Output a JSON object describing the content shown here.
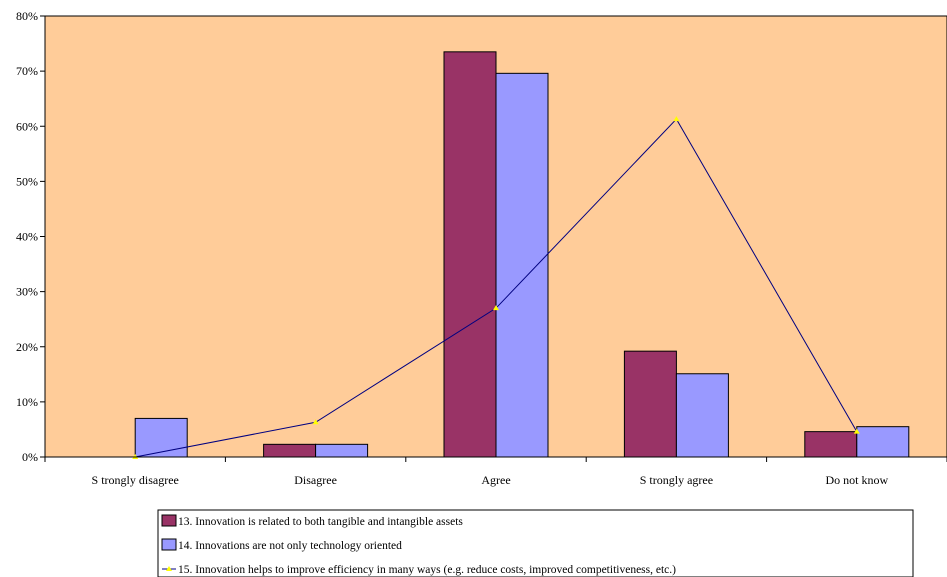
{
  "chart_data": {
    "type": "bar",
    "categories": [
      "S trongly disagree",
      "Disagree",
      "Agree",
      "S trongly agree",
      "Do not know"
    ],
    "ylim": [
      0,
      80
    ],
    "yticks": [
      0,
      10,
      20,
      30,
      40,
      50,
      60,
      70,
      80
    ],
    "ytick_labels": [
      "0%",
      "10%",
      "20%",
      "30%",
      "40%",
      "50%",
      "60%",
      "70%",
      "80%"
    ],
    "grid": false,
    "legend_position": "bottom",
    "series": [
      {
        "name": "13. Innovation is related to both tangible and intangible assets",
        "kind": "bar",
        "color": "#993366",
        "values": [
          0,
          2.3,
          73.5,
          19.2,
          4.6
        ]
      },
      {
        "name": "14. Innovations are not only technology oriented",
        "kind": "bar",
        "color": "#9999ff",
        "values": [
          7.0,
          2.3,
          69.6,
          15.1,
          5.5
        ]
      },
      {
        "name": "15. Innovation helps to improve efficiency in many ways (e.g. reduce costs, improved competitiveness, etc.)",
        "kind": "line",
        "color": "#000080",
        "marker_color": "#ffff00",
        "values": [
          0,
          6.3,
          27.0,
          61.3,
          4.6
        ]
      }
    ],
    "plot_background": "#ffcc99"
  }
}
